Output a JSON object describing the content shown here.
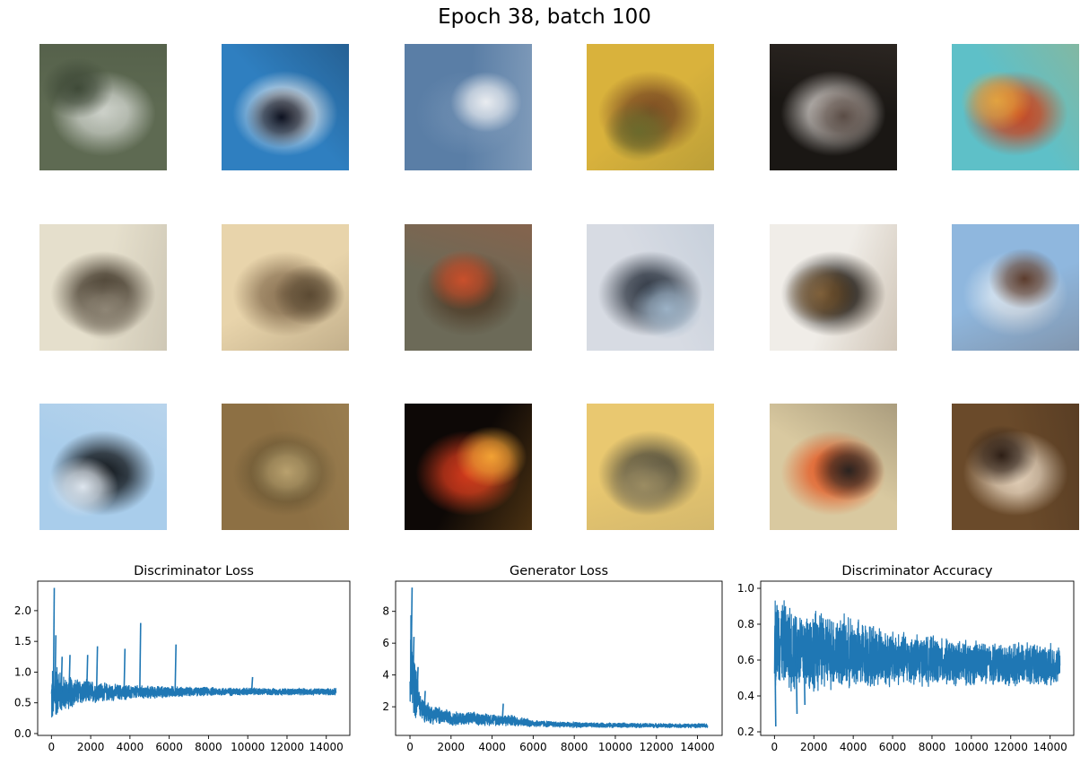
{
  "figure": {
    "title": "Epoch 38, batch 100"
  },
  "samples": {
    "rows": 3,
    "cols": 6,
    "tiles": [
      {
        "subject": "blurry greenish animal",
        "colors": [
          "#5e6a52",
          "#cfd3cc",
          "#3f4a38"
        ]
      },
      {
        "subject": "white car on blue",
        "colors": [
          "#2f7fc0",
          "#f2f4f6",
          "#0b0d1a"
        ]
      },
      {
        "subject": "small object on blue sky",
        "colors": [
          "#5a7ea6",
          "#6c8cb0",
          "#e9ecf0"
        ]
      },
      {
        "subject": "brown animal on yellow",
        "colors": [
          "#d9b23c",
          "#7a4a22",
          "#6b6a2c"
        ]
      },
      {
        "subject": "dark vehicle",
        "colors": [
          "#1a1714",
          "#cfcac6",
          "#5c4e47"
        ]
      },
      {
        "subject": "orange blob on teal",
        "colors": [
          "#5ec0c8",
          "#c8421e",
          "#e7a13a"
        ]
      },
      {
        "subject": "dark horse on beige",
        "colors": [
          "#e5dfcc",
          "#3e3426",
          "#8f8676"
        ]
      },
      {
        "subject": "birds on sand",
        "colors": [
          "#e8d4ab",
          "#8c7455",
          "#5b4a33"
        ]
      },
      {
        "subject": "brown figure in forest",
        "colors": [
          "#6c6a58",
          "#4d3a26",
          "#c9502c"
        ]
      },
      {
        "subject": "truck on grey",
        "colors": [
          "#d7dbe3",
          "#28303c",
          "#9cb2c6"
        ]
      },
      {
        "subject": "dark animal on white",
        "colors": [
          "#f0ede8",
          "#15110d",
          "#7a5a33"
        ]
      },
      {
        "subject": "bird on light blue",
        "colors": [
          "#8fb7de",
          "#d9e5f0",
          "#5b3a2a"
        ]
      },
      {
        "subject": "dark shape on sky blue",
        "colors": [
          "#a9cdeb",
          "#101418",
          "#e3e8ee"
        ]
      },
      {
        "subject": "brown grass texture",
        "colors": [
          "#8d7044",
          "#5e4e2e",
          "#b9a16e"
        ]
      },
      {
        "subject": "red car dark",
        "colors": [
          "#0d0806",
          "#d33a1c",
          "#f2a234"
        ]
      },
      {
        "subject": "grey dog on yellow",
        "colors": [
          "#e9c870",
          "#4d4a3c",
          "#9b8c62"
        ]
      },
      {
        "subject": "colorful blur",
        "colors": [
          "#d9c9a0",
          "#e45822",
          "#2a2320"
        ]
      },
      {
        "subject": "brown animal closeup",
        "colors": [
          "#6a4a2a",
          "#e9d7c0",
          "#2a1c14"
        ]
      }
    ]
  },
  "chart_data": [
    {
      "type": "line",
      "title": "Discriminator Loss",
      "xlim": [
        -700,
        15200
      ],
      "ylim": [
        -0.03,
        2.48
      ],
      "xticks": [
        0,
        2000,
        4000,
        6000,
        8000,
        10000,
        12000,
        14000
      ],
      "yticks": [
        0.0,
        0.5,
        1.0,
        1.5,
        2.0
      ],
      "ytick_labels": [
        "0.0",
        "0.5",
        "1.0",
        "1.5",
        "2.0"
      ],
      "color": "#1f77b4",
      "grid": false,
      "x": [
        0,
        50,
        120,
        200,
        300,
        500,
        700,
        1000,
        1500,
        2000,
        2500,
        3000,
        4000,
        5000,
        6000,
        7000,
        8000,
        9000,
        10000,
        11000,
        12000,
        13000,
        14000,
        14500
      ],
      "y_low": [
        0.1,
        0.05,
        0.15,
        0.2,
        0.25,
        0.3,
        0.35,
        0.4,
        0.45,
        0.47,
        0.5,
        0.52,
        0.54,
        0.56,
        0.58,
        0.6,
        0.61,
        0.61,
        0.62,
        0.62,
        0.62,
        0.62,
        0.62,
        0.62
      ],
      "y_high": [
        1.0,
        1.2,
        1.0,
        1.1,
        1.2,
        1.0,
        0.95,
        0.95,
        0.9,
        0.88,
        0.85,
        0.82,
        0.8,
        0.78,
        0.78,
        0.76,
        0.76,
        0.75,
        0.75,
        0.74,
        0.74,
        0.74,
        0.74,
        0.74
      ],
      "spikes": [
        {
          "x": 100,
          "y": 2.37
        },
        {
          "x": 180,
          "y": 1.6
        },
        {
          "x": 500,
          "y": 1.25
        },
        {
          "x": 900,
          "y": 1.28
        },
        {
          "x": 1800,
          "y": 1.28
        },
        {
          "x": 2300,
          "y": 1.42
        },
        {
          "x": 3700,
          "y": 1.38
        },
        {
          "x": 4500,
          "y": 1.8
        },
        {
          "x": 6300,
          "y": 1.45
        },
        {
          "x": 10200,
          "y": 0.92
        }
      ]
    },
    {
      "type": "line",
      "title": "Generator Loss",
      "xlim": [
        -700,
        15200
      ],
      "ylim": [
        0.2,
        9.9
      ],
      "xticks": [
        0,
        2000,
        4000,
        6000,
        8000,
        10000,
        12000,
        14000
      ],
      "yticks": [
        2,
        4,
        6,
        8
      ],
      "ytick_labels": [
        "2",
        "4",
        "6",
        "8"
      ],
      "color": "#1f77b4",
      "grid": false,
      "x": [
        0,
        50,
        120,
        200,
        300,
        500,
        700,
        1000,
        1500,
        2000,
        2500,
        3000,
        4000,
        5000,
        6000,
        7000,
        8000,
        9000,
        10000,
        11000,
        12000,
        13000,
        14000,
        14500
      ],
      "y_low": [
        0.7,
        1.0,
        1.2,
        1.2,
        1.2,
        1.1,
        1.0,
        0.9,
        0.85,
        0.8,
        0.8,
        0.8,
        0.8,
        0.75,
        0.72,
        0.7,
        0.68,
        0.68,
        0.68,
        0.68,
        0.67,
        0.67,
        0.67,
        0.67
      ],
      "y_high": [
        5.0,
        9.5,
        6.5,
        5.5,
        4.5,
        3.0,
        2.6,
        2.2,
        2.0,
        1.8,
        1.7,
        1.7,
        1.6,
        1.5,
        1.2,
        1.1,
        1.05,
        1.0,
        1.0,
        0.98,
        0.97,
        0.95,
        0.95,
        0.95
      ],
      "spikes": [
        {
          "x": 60,
          "y": 9.5
        },
        {
          "x": 150,
          "y": 6.4
        },
        {
          "x": 350,
          "y": 4.5
        },
        {
          "x": 700,
          "y": 3.0
        },
        {
          "x": 4500,
          "y": 2.2
        }
      ]
    },
    {
      "type": "line",
      "title": "Discriminator Accuracy",
      "xlim": [
        -700,
        15200
      ],
      "ylim": [
        0.18,
        1.04
      ],
      "xticks": [
        0,
        2000,
        4000,
        6000,
        8000,
        10000,
        12000,
        14000
      ],
      "yticks": [
        0.2,
        0.4,
        0.6,
        0.8,
        1.0
      ],
      "ytick_labels": [
        "0.2",
        "0.4",
        "0.6",
        "0.8",
        "1.0"
      ],
      "color": "#1f77b4",
      "grid": false,
      "x": [
        0,
        50,
        120,
        200,
        300,
        500,
        700,
        1000,
        1500,
        2000,
        2500,
        3000,
        4000,
        5000,
        6000,
        7000,
        8000,
        9000,
        10000,
        11000,
        12000,
        13000,
        14000,
        14500
      ],
      "y_low": [
        0.5,
        0.4,
        0.45,
        0.45,
        0.45,
        0.45,
        0.42,
        0.4,
        0.4,
        0.4,
        0.42,
        0.42,
        0.42,
        0.43,
        0.44,
        0.45,
        0.45,
        0.45,
        0.45,
        0.45,
        0.45,
        0.45,
        0.45,
        0.47
      ],
      "y_high": [
        0.95,
        1.0,
        1.0,
        1.0,
        0.98,
        0.95,
        0.93,
        0.92,
        0.9,
        0.9,
        0.88,
        0.87,
        0.85,
        0.82,
        0.78,
        0.76,
        0.74,
        0.72,
        0.72,
        0.71,
        0.7,
        0.7,
        0.7,
        0.68
      ],
      "spikes": [
        {
          "x": 20,
          "y": 0.23
        },
        {
          "x": 1100,
          "y": 0.3
        },
        {
          "x": 1500,
          "y": 0.35
        }
      ]
    }
  ]
}
